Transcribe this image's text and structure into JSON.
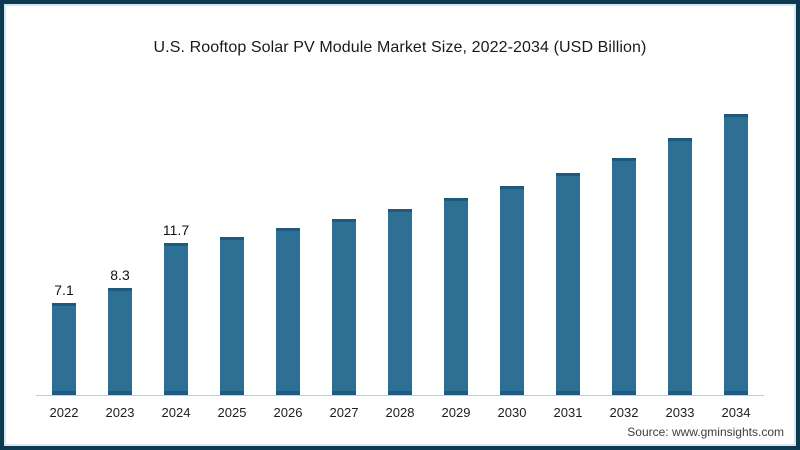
{
  "chart": {
    "source_label": "Source: www.gminsights.com"
  },
  "chart_data": {
    "type": "bar",
    "title": "U.S. Rooftop Solar PV Module Market Size, 2022-2034 (USD Billion)",
    "categories": [
      "2022",
      "2023",
      "2024",
      "2025",
      "2026",
      "2027",
      "2028",
      "2029",
      "2030",
      "2031",
      "2032",
      "2033",
      "2034"
    ],
    "values": [
      7.1,
      8.3,
      11.7,
      12.2,
      12.9,
      13.6,
      14.3,
      15.2,
      16.1,
      17.1,
      18.2,
      19.8,
      21.6
    ],
    "data_labels": [
      "7.1",
      "8.3",
      "11.7",
      "",
      "",
      "",
      "",
      "",
      "",
      "",
      "",
      "",
      ""
    ],
    "xlabel": "",
    "ylabel": "",
    "ylim": [
      0,
      24.5
    ],
    "grid": false,
    "legend": false,
    "colors": {
      "bar": "#2e6f94",
      "bar_edge": "#1d5a7c",
      "frame_border": "#0d3a50",
      "inner_border": "#d5e7f0",
      "axis_line": "#cbcbcb",
      "title_text": "#1a1a1a",
      "source_text": "#3d3d3d"
    }
  }
}
